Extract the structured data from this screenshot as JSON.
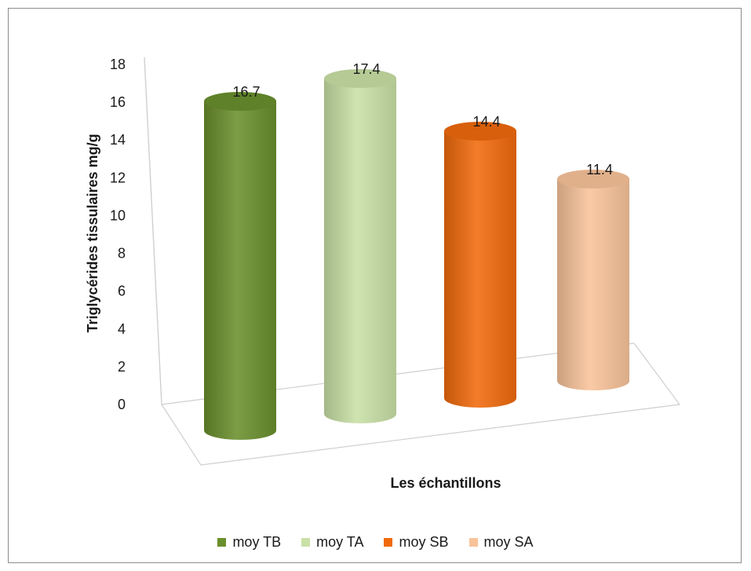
{
  "chart_data": {
    "type": "bar",
    "style": "3d-cylinder",
    "title": "",
    "xlabel": "Les échantillons",
    "ylabel": "Triglycérides tissulaires mg/g",
    "ylim": [
      0,
      18
    ],
    "yticks": [
      "0",
      "2",
      "4",
      "6",
      "8",
      "10",
      "12",
      "14",
      "16",
      "18"
    ],
    "grid": false,
    "legend_position": "bottom",
    "series": [
      {
        "name": "moy TB",
        "value": 16.7,
        "label": "16.7",
        "color": "#6a8f2d"
      },
      {
        "name": "moy TA",
        "value": 17.4,
        "label": "17.4",
        "color": "#c9e0a6"
      },
      {
        "name": "moy SB",
        "value": 14.4,
        "label": "14.4",
        "color": "#f06a0c"
      },
      {
        "name": "moy SA",
        "value": 11.4,
        "label": "11.4",
        "color": "#f9c39a"
      }
    ]
  }
}
